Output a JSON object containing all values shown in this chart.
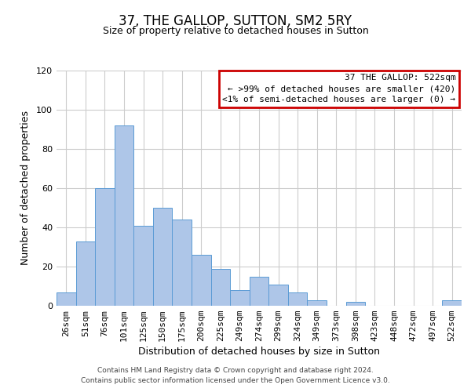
{
  "title": "37, THE GALLOP, SUTTON, SM2 5RY",
  "subtitle": "Size of property relative to detached houses in Sutton",
  "xlabel": "Distribution of detached houses by size in Sutton",
  "ylabel": "Number of detached properties",
  "bar_labels": [
    "26sqm",
    "51sqm",
    "76sqm",
    "101sqm",
    "125sqm",
    "150sqm",
    "175sqm",
    "200sqm",
    "225sqm",
    "249sqm",
    "274sqm",
    "299sqm",
    "324sqm",
    "349sqm",
    "373sqm",
    "398sqm",
    "423sqm",
    "448sqm",
    "472sqm",
    "497sqm",
    "522sqm"
  ],
  "bar_values": [
    7,
    33,
    60,
    92,
    41,
    50,
    44,
    26,
    19,
    8,
    15,
    11,
    7,
    3,
    0,
    2,
    0,
    0,
    0,
    0,
    3
  ],
  "bar_color": "#aec6e8",
  "bar_edge_color": "#5b9bd5",
  "ylim": [
    0,
    120
  ],
  "yticks": [
    0,
    20,
    40,
    60,
    80,
    100,
    120
  ],
  "legend_title": "37 THE GALLOP: 522sqm",
  "legend_line1": "← >99% of detached houses are smaller (420)",
  "legend_line2": "<1% of semi-detached houses are larger (0) →",
  "legend_box_color": "#ffffff",
  "legend_box_edge_color": "#cc0000",
  "footer_line1": "Contains HM Land Registry data © Crown copyright and database right 2024.",
  "footer_line2": "Contains public sector information licensed under the Open Government Licence v3.0.",
  "background_color": "#ffffff",
  "grid_color": "#cccccc",
  "title_fontsize": 12,
  "subtitle_fontsize": 9,
  "axis_label_fontsize": 9,
  "tick_fontsize": 8,
  "footer_fontsize": 6.5,
  "legend_fontsize": 8
}
